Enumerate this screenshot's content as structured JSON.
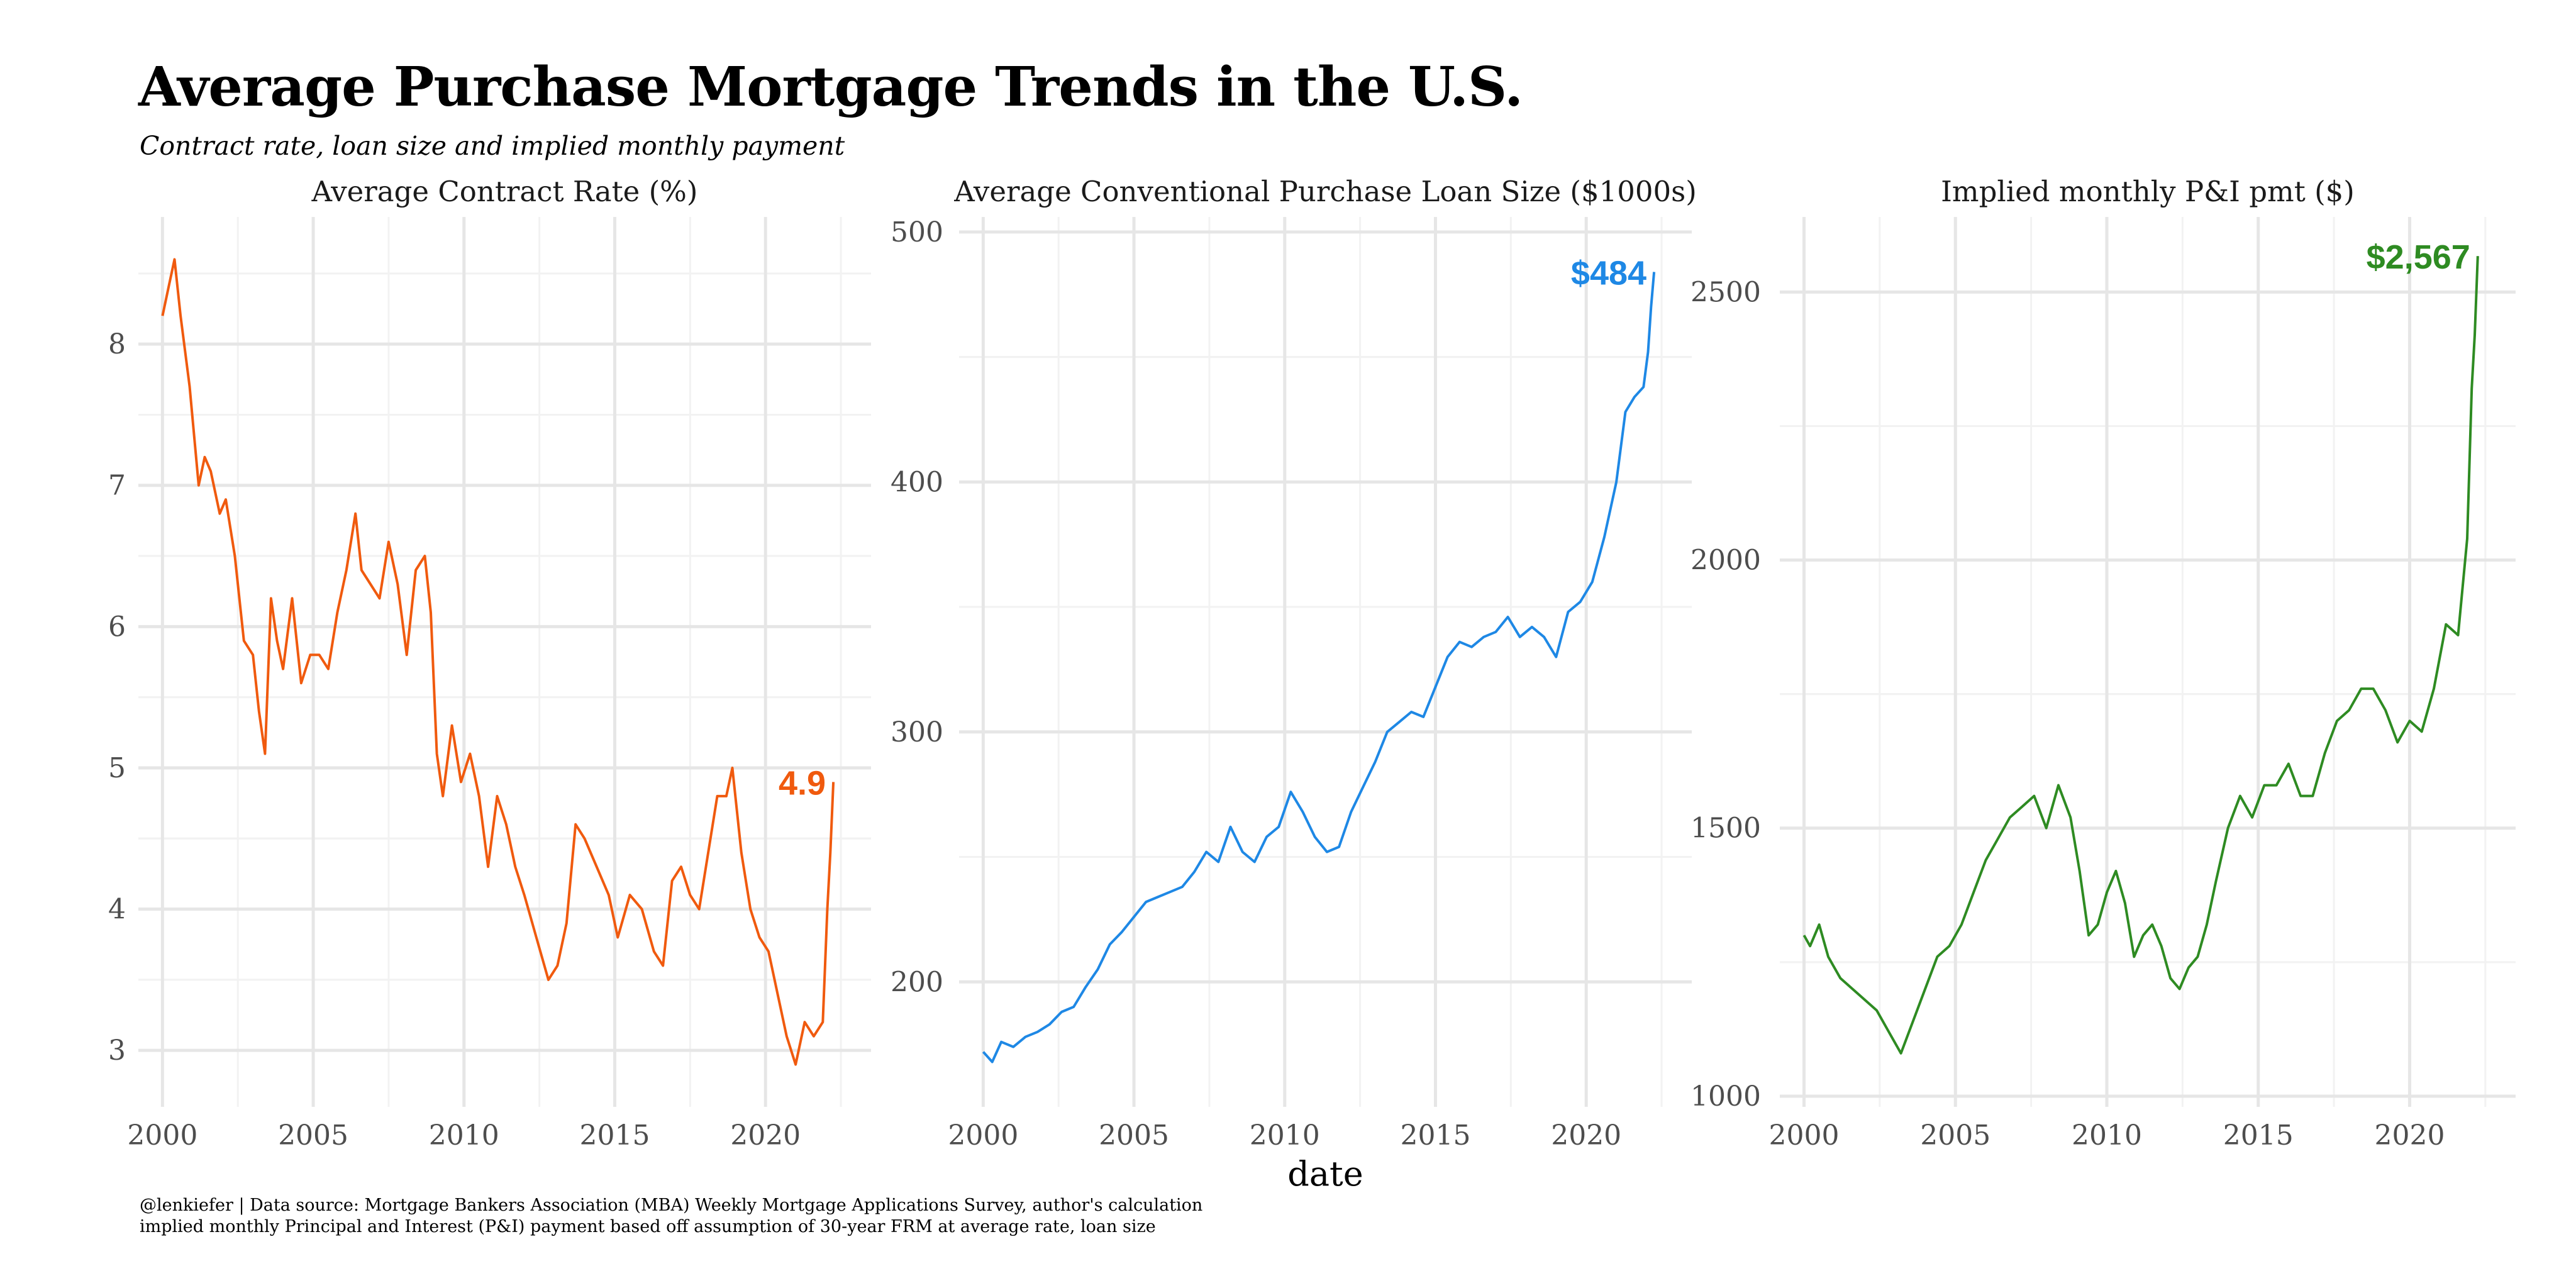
{
  "title": "Average Purchase Mortgage Trends in the U.S.",
  "subtitle": "Contract rate, loan size and implied monthly payment",
  "caption": {
    "line1": "@lenkiefer | Data source: Mortgage Bankers Association (MBA) Weekly Mortgage Applications Survey, author's calculation",
    "line2": "implied monthly Principal and Interest (P&I) payment based off assumption of 30-year FRM at average rate, loan size"
  },
  "chart_data": [
    {
      "type": "line",
      "title": "Average Contract Rate (%)",
      "xlabel": "",
      "ylabel": "",
      "color": "#f05a0e",
      "xlim": [
        1999.2,
        2023.5
      ],
      "ylim": [
        2.6,
        8.9
      ],
      "xticks": [
        2000,
        2005,
        2010,
        2015,
        2020
      ],
      "yticks": [
        3,
        4,
        5,
        6,
        7,
        8
      ],
      "end_label": "4.9",
      "grid": true,
      "series": [
        {
          "x": [
            2000.0,
            2000.2,
            2000.4,
            2000.6,
            2000.9,
            2001.2,
            2001.4,
            2001.6,
            2001.9,
            2002.1,
            2002.4,
            2002.7,
            2003.0,
            2003.2,
            2003.4,
            2003.6,
            2003.8,
            2004.0,
            2004.3,
            2004.6,
            2004.9,
            2005.2,
            2005.5,
            2005.8,
            2006.1,
            2006.4,
            2006.6,
            2006.9,
            2007.2,
            2007.5,
            2007.8,
            2008.1,
            2008.4,
            2008.7,
            2008.9,
            2009.1,
            2009.3,
            2009.6,
            2009.9,
            2010.2,
            2010.5,
            2010.8,
            2011.1,
            2011.4,
            2011.7,
            2012.0,
            2012.4,
            2012.8,
            2013.1,
            2013.4,
            2013.7,
            2014.0,
            2014.4,
            2014.8,
            2015.1,
            2015.5,
            2015.9,
            2016.3,
            2016.6,
            2016.9,
            2017.2,
            2017.5,
            2017.8,
            2018.1,
            2018.4,
            2018.7,
            2018.9,
            2019.2,
            2019.5,
            2019.8,
            2020.1,
            2020.4,
            2020.7,
            2021.0,
            2021.3,
            2021.6,
            2021.9,
            2022.05,
            2022.15,
            2022.25
          ],
          "y": [
            8.2,
            8.4,
            8.6,
            8.2,
            7.7,
            7.0,
            7.2,
            7.1,
            6.8,
            6.9,
            6.5,
            5.9,
            5.8,
            5.4,
            5.1,
            6.2,
            5.9,
            5.7,
            6.2,
            5.6,
            5.8,
            5.8,
            5.7,
            6.1,
            6.4,
            6.8,
            6.4,
            6.3,
            6.2,
            6.6,
            6.3,
            5.8,
            6.4,
            6.5,
            6.1,
            5.1,
            4.8,
            5.3,
            4.9,
            5.1,
            4.8,
            4.3,
            4.8,
            4.6,
            4.3,
            4.1,
            3.8,
            3.5,
            3.6,
            3.9,
            4.6,
            4.5,
            4.3,
            4.1,
            3.8,
            4.1,
            4.0,
            3.7,
            3.6,
            4.2,
            4.3,
            4.1,
            4.0,
            4.4,
            4.8,
            4.8,
            5.0,
            4.4,
            4.0,
            3.8,
            3.7,
            3.4,
            3.1,
            2.9,
            3.2,
            3.1,
            3.2,
            4.0,
            4.4,
            4.9
          ]
        }
      ]
    },
    {
      "type": "line",
      "title": "Average Conventional Purchase Loan Size ($1000s)",
      "xlabel": "date",
      "ylabel": "",
      "color": "#1e88e5",
      "xlim": [
        1999.2,
        2023.5
      ],
      "ylim": [
        150,
        506
      ],
      "xticks": [
        2000,
        2005,
        2010,
        2015,
        2020
      ],
      "yticks": [
        200,
        300,
        400,
        500
      ],
      "end_label": "$484",
      "grid": true,
      "series": [
        {
          "x": [
            2000.0,
            2000.3,
            2000.6,
            2001.0,
            2001.4,
            2001.8,
            2002.2,
            2002.6,
            2003.0,
            2003.4,
            2003.8,
            2004.2,
            2004.6,
            2005.0,
            2005.4,
            2005.8,
            2006.2,
            2006.6,
            2007.0,
            2007.4,
            2007.8,
            2008.2,
            2008.6,
            2009.0,
            2009.4,
            2009.8,
            2010.2,
            2010.6,
            2011.0,
            2011.4,
            2011.8,
            2012.2,
            2012.6,
            2013.0,
            2013.4,
            2013.8,
            2014.2,
            2014.6,
            2015.0,
            2015.4,
            2015.8,
            2016.2,
            2016.6,
            2017.0,
            2017.4,
            2017.8,
            2018.2,
            2018.6,
            2019.0,
            2019.4,
            2019.8,
            2020.2,
            2020.6,
            2021.0,
            2021.3,
            2021.6,
            2021.9,
            2022.05,
            2022.15,
            2022.25
          ],
          "y": [
            172,
            168,
            176,
            174,
            178,
            180,
            183,
            188,
            190,
            198,
            205,
            215,
            220,
            226,
            232,
            234,
            236,
            238,
            244,
            252,
            248,
            262,
            252,
            248,
            258,
            262,
            276,
            268,
            258,
            252,
            254,
            268,
            278,
            288,
            300,
            304,
            308,
            306,
            318,
            330,
            336,
            334,
            338,
            340,
            346,
            338,
            342,
            338,
            330,
            348,
            352,
            360,
            378,
            400,
            428,
            434,
            438,
            452,
            470,
            484
          ]
        }
      ]
    },
    {
      "type": "line",
      "title": "Implied monthly P&I pmt ($)",
      "xlabel": "",
      "ylabel": "",
      "color": "#2e8b22",
      "xlim": [
        1999.2,
        2023.5
      ],
      "ylim": [
        980,
        2640
      ],
      "xticks": [
        2000,
        2005,
        2010,
        2015,
        2020
      ],
      "yticks": [
        1000,
        1500,
        2000,
        2500
      ],
      "end_label": "$2,567",
      "grid": true,
      "series": [
        {
          "x": [
            2000.0,
            2000.2,
            2000.5,
            2000.8,
            2001.2,
            2001.6,
            2002.0,
            2002.4,
            2002.8,
            2003.2,
            2003.6,
            2004.0,
            2004.4,
            2004.8,
            2005.2,
            2005.6,
            2006.0,
            2006.4,
            2006.8,
            2007.2,
            2007.6,
            2008.0,
            2008.4,
            2008.8,
            2009.1,
            2009.4,
            2009.7,
            2010.0,
            2010.3,
            2010.6,
            2010.9,
            2011.2,
            2011.5,
            2011.8,
            2012.1,
            2012.4,
            2012.7,
            2013.0,
            2013.3,
            2013.6,
            2014.0,
            2014.4,
            2014.8,
            2015.2,
            2015.6,
            2016.0,
            2016.4,
            2016.8,
            2017.2,
            2017.6,
            2018.0,
            2018.4,
            2018.8,
            2019.2,
            2019.6,
            2020.0,
            2020.4,
            2020.8,
            2021.2,
            2021.6,
            2021.9,
            2022.05,
            2022.15,
            2022.25
          ],
          "y": [
            1300,
            1280,
            1320,
            1260,
            1220,
            1200,
            1180,
            1160,
            1120,
            1080,
            1140,
            1200,
            1260,
            1280,
            1320,
            1380,
            1440,
            1480,
            1520,
            1540,
            1560,
            1500,
            1580,
            1520,
            1420,
            1300,
            1320,
            1380,
            1420,
            1360,
            1260,
            1300,
            1320,
            1280,
            1220,
            1200,
            1240,
            1260,
            1320,
            1400,
            1500,
            1560,
            1520,
            1580,
            1580,
            1620,
            1560,
            1560,
            1640,
            1700,
            1720,
            1760,
            1760,
            1720,
            1660,
            1700,
            1680,
            1760,
            1880,
            1860,
            2040,
            2320,
            2420,
            2567
          ]
        }
      ]
    }
  ]
}
